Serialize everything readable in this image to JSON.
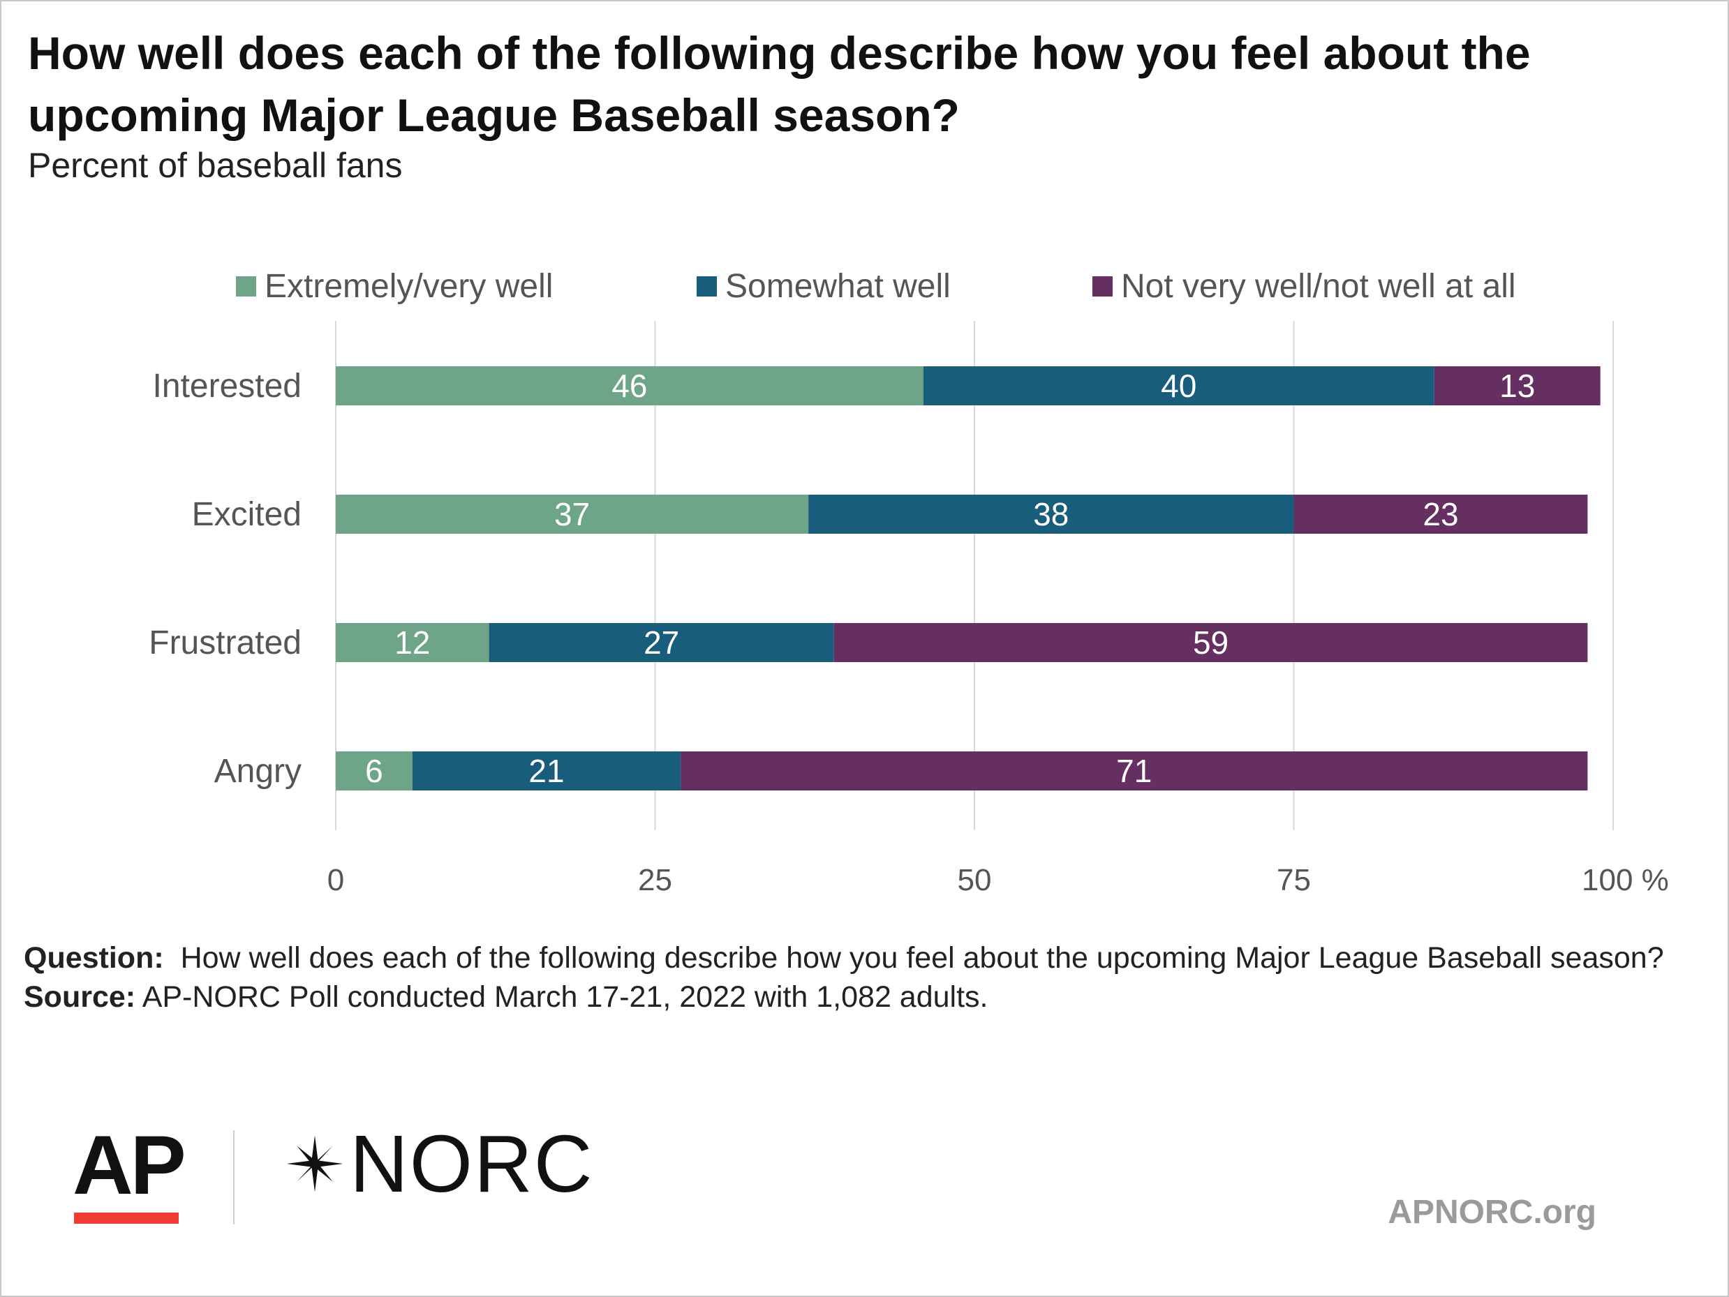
{
  "chart_data": {
    "type": "bar",
    "orientation": "horizontal",
    "stacked": true,
    "title": "How well does each of the following describe how you feel about the upcoming Major League Baseball season?",
    "subtitle": "Percent of baseball fans",
    "categories": [
      "Interested",
      "Excited",
      "Frustrated",
      "Angry"
    ],
    "series": [
      {
        "name": "Extremely/very well",
        "color": "#6ea487",
        "values": [
          46,
          37,
          12,
          6
        ]
      },
      {
        "name": "Somewhat well",
        "color": "#185d7c",
        "values": [
          40,
          38,
          27,
          21
        ]
      },
      {
        "name": "Not very well/not well at all",
        "color": "#662f62",
        "values": [
          13,
          23,
          59,
          71
        ]
      }
    ],
    "xlim": [
      0,
      100
    ],
    "xticks": [
      0,
      25,
      50,
      75,
      100
    ],
    "xtick_labels": [
      "0",
      "25",
      "50",
      "75",
      "100 %"
    ],
    "grid": true,
    "legend": "top",
    "xlabel": "",
    "ylabel": ""
  },
  "footer": {
    "question_label": "Question:",
    "question_text": "How well does each of the following describe how you feel about the upcoming Major League Baseball season?",
    "source_label": "Source:",
    "source_text": "AP-NORC Poll conducted March 17-21, 2022 with 1,082 adults."
  },
  "logos": {
    "ap": "AP",
    "norc": "NORC",
    "site": "APNORC.org"
  }
}
